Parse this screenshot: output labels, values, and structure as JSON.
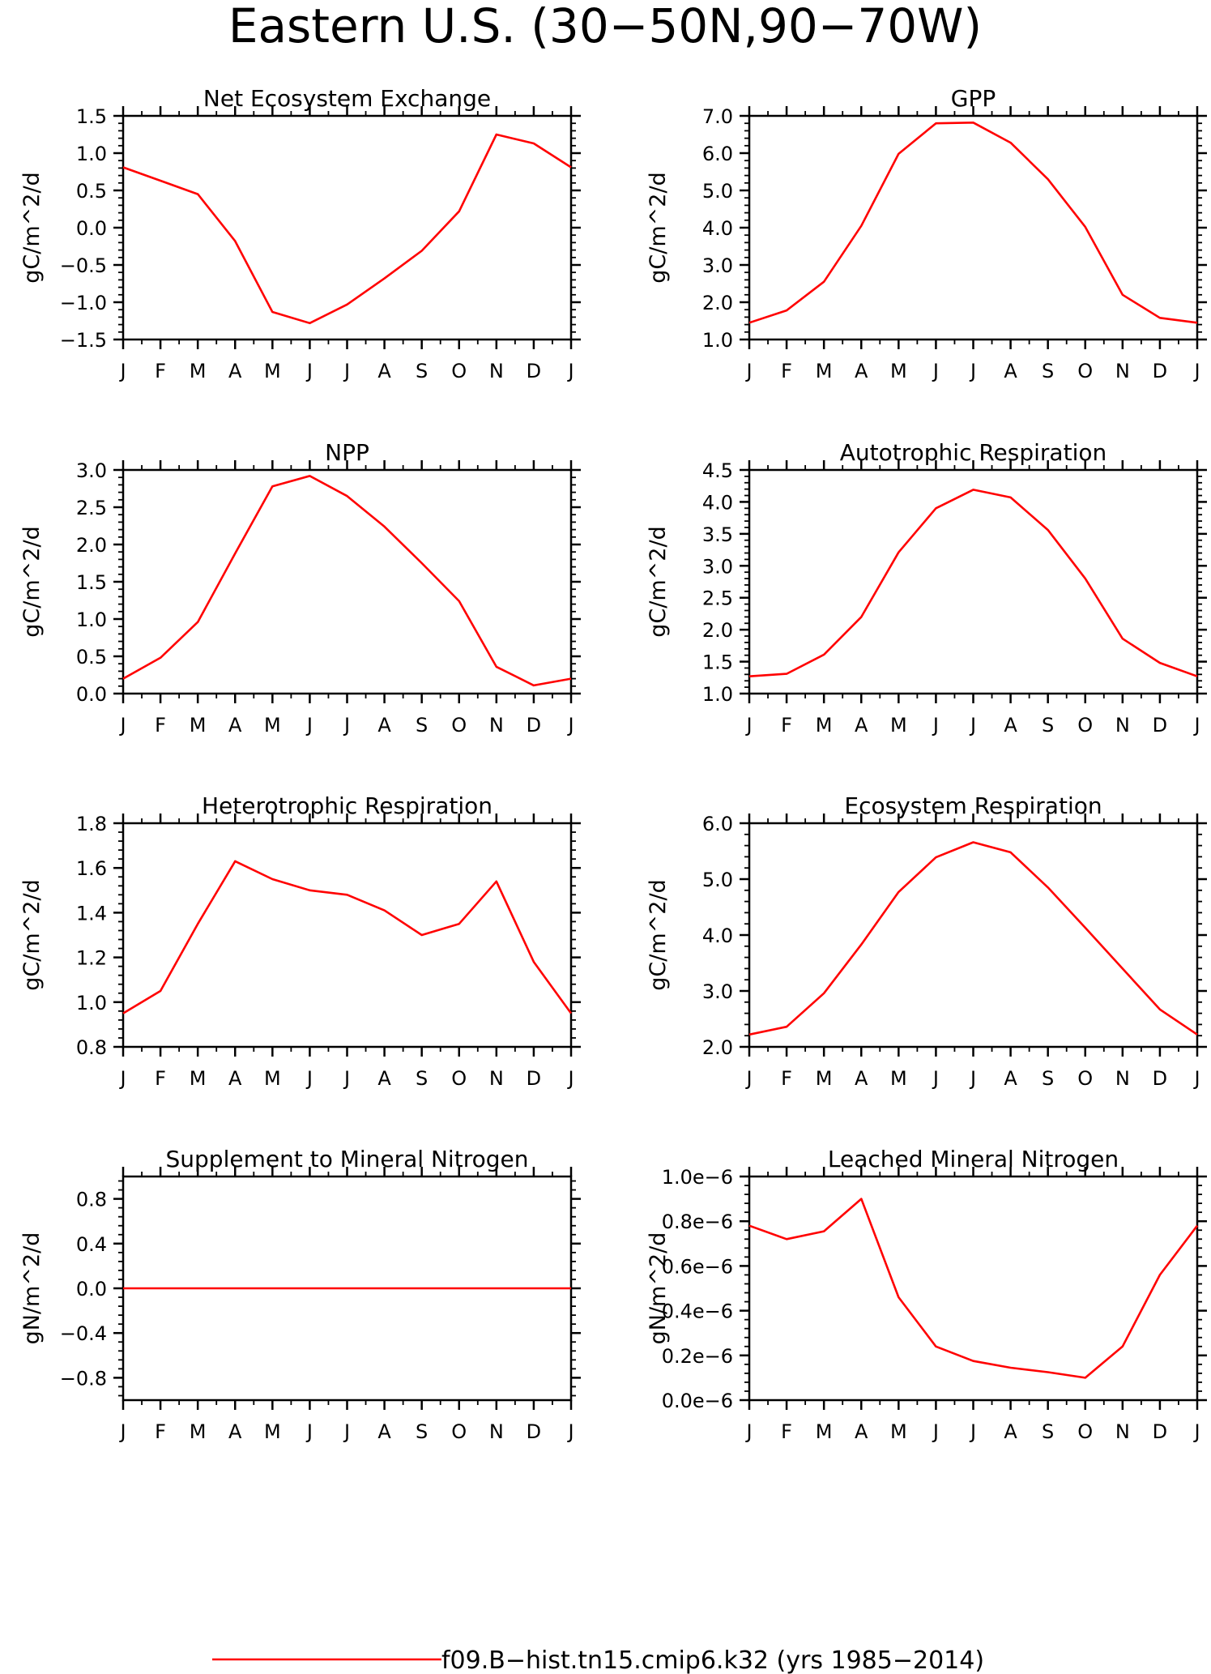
{
  "figure": {
    "title": "Eastern U.S. (30−50N,90−70W)",
    "legend": {
      "label": "f09.B−hist.tn15.cmip6.k32 (yrs 1985−2014)",
      "color": "#ff0000",
      "placement": "bottom-center"
    }
  },
  "chart_data": [
    {
      "type": "line",
      "title": "Net Ecosystem Exchange",
      "ylabel": "gC/m^2/d",
      "categories": [
        "J",
        "F",
        "M",
        "A",
        "M",
        "J",
        "J",
        "A",
        "S",
        "O",
        "N",
        "D",
        "J"
      ],
      "ylim": [
        -1.5,
        1.5
      ],
      "yticks": [
        -1.5,
        -1.0,
        -0.5,
        0.0,
        0.5,
        1.0,
        1.5
      ],
      "ytick_labels": [
        "−1.5",
        "−1.0",
        "−0.5",
        "0.0",
        "0.5",
        "1.0",
        "1.5"
      ],
      "series": [
        {
          "color": "#ff0000",
          "values": [
            0.81,
            0.63,
            0.45,
            -0.18,
            -1.13,
            -1.28,
            -1.03,
            -0.68,
            -0.31,
            0.22,
            1.25,
            1.13,
            0.81
          ]
        }
      ]
    },
    {
      "type": "line",
      "title": "GPP",
      "ylabel": "gC/m^2/d",
      "categories": [
        "J",
        "F",
        "M",
        "A",
        "M",
        "J",
        "J",
        "A",
        "S",
        "O",
        "N",
        "D",
        "J"
      ],
      "ylim": [
        1.0,
        7.0
      ],
      "yticks": [
        1.0,
        2.0,
        3.0,
        4.0,
        5.0,
        6.0,
        7.0
      ],
      "ytick_labels": [
        "1.0",
        "2.0",
        "3.0",
        "4.0",
        "5.0",
        "6.0",
        "7.0"
      ],
      "series": [
        {
          "color": "#ff0000",
          "values": [
            1.45,
            1.78,
            2.55,
            4.05,
            5.98,
            6.8,
            6.82,
            6.28,
            5.3,
            4.02,
            2.2,
            1.58,
            1.45
          ]
        }
      ]
    },
    {
      "type": "line",
      "title": "NPP",
      "ylabel": "gC/m^2/d",
      "categories": [
        "J",
        "F",
        "M",
        "A",
        "M",
        "J",
        "J",
        "A",
        "S",
        "O",
        "N",
        "D",
        "J"
      ],
      "ylim": [
        0.0,
        3.0
      ],
      "yticks": [
        0.0,
        0.5,
        1.0,
        1.5,
        2.0,
        2.5,
        3.0
      ],
      "ytick_labels": [
        "0.0",
        "0.5",
        "1.0",
        "1.5",
        "2.0",
        "2.5",
        "3.0"
      ],
      "series": [
        {
          "color": "#ff0000",
          "values": [
            0.2,
            0.48,
            0.96,
            1.88,
            2.78,
            2.92,
            2.65,
            2.24,
            1.75,
            1.24,
            0.36,
            0.11,
            0.2
          ]
        }
      ]
    },
    {
      "type": "line",
      "title": "Autotrophic Respiration",
      "ylabel": "gC/m^2/d",
      "categories": [
        "J",
        "F",
        "M",
        "A",
        "M",
        "J",
        "J",
        "A",
        "S",
        "O",
        "N",
        "D",
        "J"
      ],
      "ylim": [
        1.0,
        4.5
      ],
      "yticks": [
        1.0,
        1.5,
        2.0,
        2.5,
        3.0,
        3.5,
        4.0,
        4.5
      ],
      "ytick_labels": [
        "1.0",
        "1.5",
        "2.0",
        "2.5",
        "3.0",
        "3.5",
        "4.0",
        "4.5"
      ],
      "series": [
        {
          "color": "#ff0000",
          "values": [
            1.27,
            1.31,
            1.61,
            2.2,
            3.21,
            3.9,
            4.19,
            4.07,
            3.56,
            2.8,
            1.86,
            1.48,
            1.27
          ]
        }
      ]
    },
    {
      "type": "line",
      "title": "Heterotrophic Respiration",
      "ylabel": "gC/m^2/d",
      "categories": [
        "J",
        "F",
        "M",
        "A",
        "M",
        "J",
        "J",
        "A",
        "S",
        "O",
        "N",
        "D",
        "J"
      ],
      "ylim": [
        0.8,
        1.8
      ],
      "yticks": [
        0.8,
        1.0,
        1.2,
        1.4,
        1.6,
        1.8
      ],
      "ytick_labels": [
        "0.8",
        "1.0",
        "1.2",
        "1.4",
        "1.6",
        "1.8"
      ],
      "series": [
        {
          "color": "#ff0000",
          "values": [
            0.95,
            1.05,
            1.35,
            1.63,
            1.55,
            1.5,
            1.48,
            1.41,
            1.3,
            1.35,
            1.54,
            1.18,
            0.95
          ]
        }
      ]
    },
    {
      "type": "line",
      "title": "Ecosystem Respiration",
      "ylabel": "gC/m^2/d",
      "categories": [
        "J",
        "F",
        "M",
        "A",
        "M",
        "J",
        "J",
        "A",
        "S",
        "O",
        "N",
        "D",
        "J"
      ],
      "ylim": [
        2.0,
        6.0
      ],
      "yticks": [
        2.0,
        3.0,
        4.0,
        5.0,
        6.0
      ],
      "ytick_labels": [
        "2.0",
        "3.0",
        "4.0",
        "5.0",
        "6.0"
      ],
      "series": [
        {
          "color": "#ff0000",
          "values": [
            2.22,
            2.36,
            2.96,
            3.83,
            4.77,
            5.39,
            5.66,
            5.48,
            4.85,
            4.13,
            3.4,
            2.67,
            2.22
          ]
        }
      ]
    },
    {
      "type": "line",
      "title": "Supplement to Mineral Nitrogen",
      "ylabel": "gN/m^2/d",
      "categories": [
        "J",
        "F",
        "M",
        "A",
        "M",
        "J",
        "J",
        "A",
        "S",
        "O",
        "N",
        "D",
        "J"
      ],
      "ylim": [
        -1.0,
        1.0
      ],
      "yticks": [
        -0.8,
        -0.4,
        0.0,
        0.4,
        0.8
      ],
      "ytick_labels": [
        "−0.8",
        "−0.4",
        "0.0",
        "0.4",
        "0.8"
      ],
      "series": [
        {
          "color": "#ff0000",
          "values": [
            0,
            0,
            0,
            0,
            0,
            0,
            0,
            0,
            0,
            0,
            0,
            0,
            0
          ]
        }
      ]
    },
    {
      "type": "line",
      "title": "Leached Mineral Nitrogen",
      "ylabel": "gN/m^2/d",
      "categories": [
        "J",
        "F",
        "M",
        "A",
        "M",
        "J",
        "J",
        "A",
        "S",
        "O",
        "N",
        "D",
        "J"
      ],
      "ylim": [
        0.0,
        1e-06
      ],
      "yticks": [
        0.0,
        2e-07,
        4e-07,
        6e-07,
        8e-07,
        1e-06
      ],
      "ytick_labels": [
        "0.0e−6",
        "0.2e−6",
        "0.4e−6",
        "0.6e−6",
        "0.8e−6",
        "1.0e−6"
      ],
      "series": [
        {
          "color": "#ff0000",
          "values": [
            7.8e-07,
            7.2e-07,
            7.55e-07,
            9e-07,
            4.6e-07,
            2.4e-07,
            1.75e-07,
            1.45e-07,
            1.25e-07,
            1e-07,
            2.4e-07,
            5.6e-07,
            7.8e-07
          ]
        }
      ]
    }
  ]
}
